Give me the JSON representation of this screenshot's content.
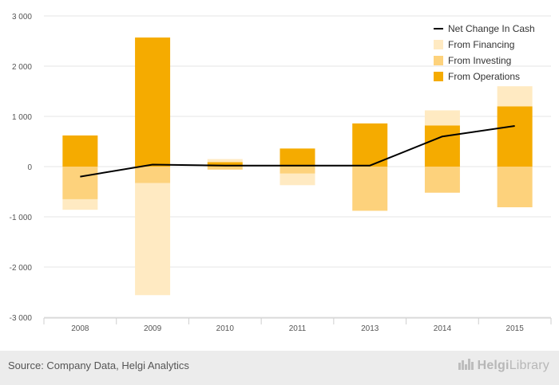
{
  "chart_data": {
    "type": "bar",
    "stacked": true,
    "categories": [
      "2008",
      "2009",
      "2010",
      "2011",
      "2013",
      "2014",
      "2015"
    ],
    "series": [
      {
        "name": "From Operations",
        "kind": "bar",
        "color": "#f5ab00",
        "values": [
          620,
          2570,
          90,
          360,
          860,
          820,
          1200
        ]
      },
      {
        "name": "From Investing",
        "kind": "bar",
        "color": "#fdd27c",
        "values": [
          -650,
          -330,
          -60,
          -140,
          -880,
          -520,
          -810
        ]
      },
      {
        "name": "From Financing",
        "kind": "bar",
        "color": "#ffeac2",
        "values": [
          -210,
          -2230,
          60,
          -230,
          0,
          300,
          400
        ]
      },
      {
        "name": "Net Change In Cash",
        "kind": "line",
        "color": "#000000",
        "values": [
          -200,
          40,
          20,
          20,
          20,
          600,
          810
        ]
      }
    ],
    "yticks": [
      "3 000",
      "2 000",
      "1 000",
      "0",
      "-1 000",
      "-2 000",
      "-3 000"
    ],
    "ylim": [
      -3000,
      3000
    ],
    "grid": true,
    "legend_position": "top-right",
    "legend": [
      {
        "label": "Net Change In Cash",
        "kind": "line",
        "color": "#000000"
      },
      {
        "label": "From Financing",
        "kind": "box",
        "color": "#ffeac2"
      },
      {
        "label": "From Investing",
        "kind": "box",
        "color": "#fdd27c"
      },
      {
        "label": "From Operations",
        "kind": "box",
        "color": "#f5ab00"
      }
    ]
  },
  "footer": {
    "source": "Source: Company Data, Helgi Analytics",
    "logo_part1": "Helgi",
    "logo_part2": "Library",
    "logo_icon": "helgi-library-logo-icon"
  }
}
